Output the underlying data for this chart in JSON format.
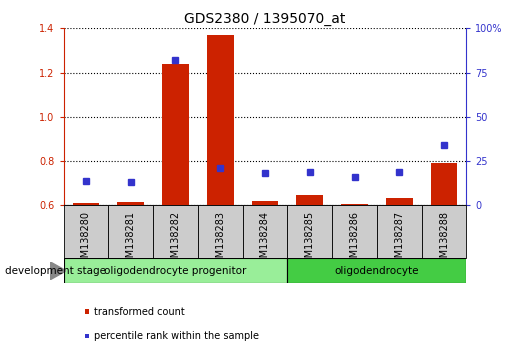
{
  "title": "GDS2380 / 1395070_at",
  "categories": [
    "GSM138280",
    "GSM138281",
    "GSM138282",
    "GSM138283",
    "GSM138284",
    "GSM138285",
    "GSM138286",
    "GSM138287",
    "GSM138288"
  ],
  "transformed_count": [
    0.612,
    0.613,
    1.238,
    1.37,
    0.618,
    0.648,
    0.608,
    0.632,
    0.79
  ],
  "percentile_rank": [
    14,
    13,
    82,
    21,
    18,
    19,
    16,
    19,
    34
  ],
  "ylim_left": [
    0.6,
    1.4
  ],
  "ylim_right": [
    0,
    100
  ],
  "yticks_left": [
    0.6,
    0.8,
    1.0,
    1.2,
    1.4
  ],
  "yticks_right": [
    0,
    25,
    50,
    75,
    100
  ],
  "ytick_labels_right": [
    "0",
    "25",
    "50",
    "75",
    "100%"
  ],
  "bar_color": "#cc2200",
  "dot_color": "#3333cc",
  "group1_label": "oligodendrocyte progenitor",
  "group2_label": "oligodendrocyte",
  "group1_indices": [
    0,
    1,
    2,
    3,
    4
  ],
  "group2_indices": [
    5,
    6,
    7,
    8
  ],
  "group1_color": "#99ee99",
  "group2_color": "#44cc44",
  "stage_label": "development stage",
  "legend_items": [
    "transformed count",
    "percentile rank within the sample"
  ],
  "legend_colors": [
    "#cc2200",
    "#3333cc"
  ],
  "title_fontsize": 10,
  "tick_fontsize": 7,
  "bar_width": 0.6,
  "xtick_bg_color": "#cccccc",
  "spine_color": "#000000"
}
